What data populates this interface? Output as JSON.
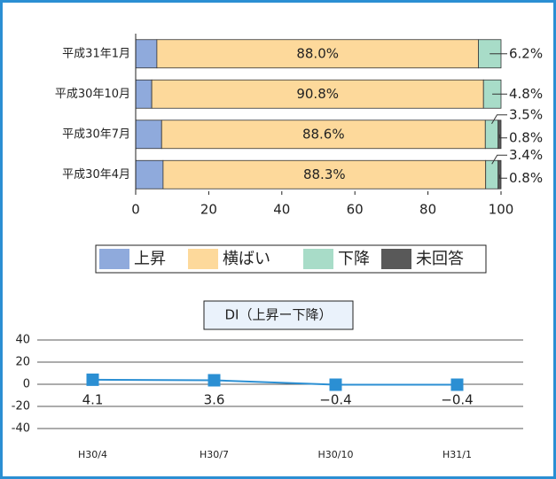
{
  "chart_data": [
    {
      "type": "stacked-bar-horizontal",
      "categories": [
        "平成31年1月",
        "平成30年10月",
        "平成30年7月",
        "平成30年4月"
      ],
      "series": [
        {
          "name": "上昇",
          "color": "#8faadc",
          "values": [
            5.8,
            4.4,
            7.1,
            7.5
          ],
          "value_labels": [
            "5.8%",
            "4.4%",
            "7.1%",
            "7.5%"
          ]
        },
        {
          "name": "横ばい",
          "color": "#fdd99b",
          "values": [
            88.0,
            90.8,
            88.6,
            88.3
          ],
          "value_labels": [
            "88.0%",
            "90.8%",
            "88.6%",
            "88.3%"
          ]
        },
        {
          "name": "下降",
          "color": "#a8dcc8",
          "values": [
            6.2,
            4.8,
            3.5,
            3.4
          ],
          "value_labels": [
            "6.2%",
            "4.8%",
            "3.5%",
            "3.4%"
          ]
        },
        {
          "name": "未回答",
          "color": "#595959",
          "values": [
            null,
            null,
            0.8,
            0.8
          ],
          "value_labels": [
            null,
            null,
            "0.8%",
            "0.8%"
          ]
        }
      ],
      "xlim": [
        0,
        100
      ],
      "xticks": [
        0,
        20,
        40,
        60,
        80,
        100
      ],
      "legend": "bottom"
    },
    {
      "type": "line",
      "title": "DI（上昇ー下降）",
      "categories": [
        "H30/4",
        "H30/7",
        "H30/10",
        "H31/1"
      ],
      "values": [
        4.1,
        3.6,
        -0.4,
        -0.4
      ],
      "value_labels": [
        "4.1",
        "3.6",
        "−0.4",
        "−0.4"
      ],
      "color": "#2b8fd3",
      "ylim": [
        -40,
        40
      ],
      "yticks": [
        40,
        20,
        0,
        -20,
        -40
      ],
      "grid": true
    }
  ]
}
